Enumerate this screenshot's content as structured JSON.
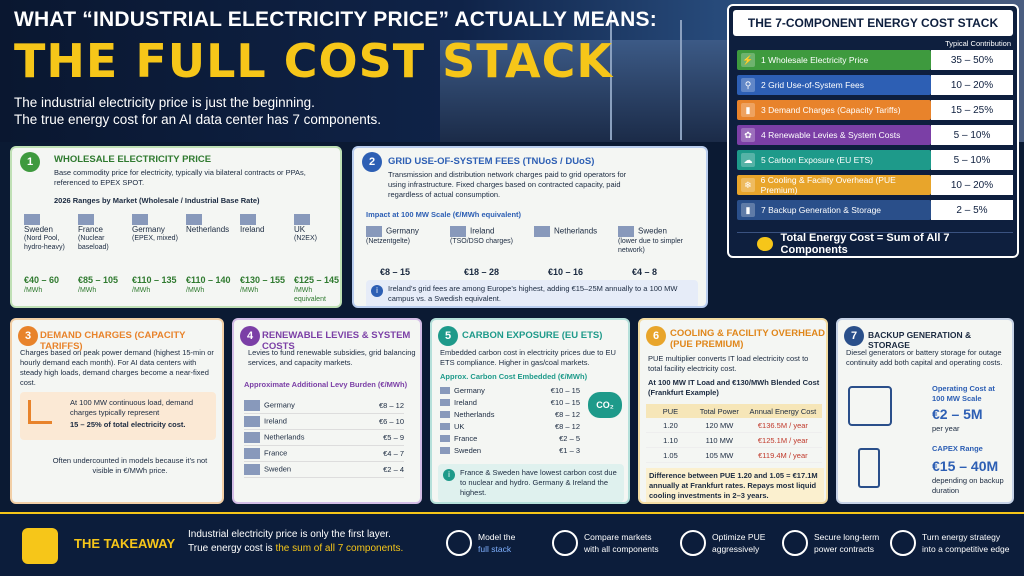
{
  "header": {
    "line1": "WHAT “INDUSTRIAL ELECTRICITY PRICE” ACTUALLY MEANS:",
    "line2": "THE FULL COST STACK",
    "sub1": "The industrial electricity price is just the beginning.",
    "sub2": "The true energy cost for an AI data center has 7 components."
  },
  "stack": {
    "title": "THE 7-COMPONENT ENERGY COST STACK",
    "col": "Typical Contribution",
    "total": "Total Energy Cost = Sum of All 7 Components",
    "rows": [
      {
        "label": "1  Wholesale Electricity Price",
        "value": "35 – 50%",
        "color": "#3e9a3e",
        "icon": "⚡"
      },
      {
        "label": "2  Grid Use-of-System Fees",
        "value": "10 – 20%",
        "color": "#2d5fb4",
        "icon": "⚲"
      },
      {
        "label": "3  Demand Charges (Capacity Tariffs)",
        "value": "15 – 25%",
        "color": "#e8832b",
        "icon": "▮"
      },
      {
        "label": "4  Renewable Levies & System Costs",
        "value": "5 – 10%",
        "color": "#7b3fa6",
        "icon": "✿"
      },
      {
        "label": "5  Carbon Exposure (EU ETS)",
        "value": "5 – 10%",
        "color": "#1e9a8a",
        "icon": "☁"
      },
      {
        "label": "6  Cooling & Facility Overhead (PUE Premium)",
        "value": "10 – 20%",
        "color": "#e8a52b",
        "icon": "❄"
      },
      {
        "label": "7  Backup Generation & Storage",
        "value": "2 – 5%",
        "color": "#2a4f8a",
        "icon": "▮"
      }
    ]
  },
  "c1": {
    "n": "1",
    "title": "WHOLESALE ELECTRICITY PRICE",
    "text": "Base commodity price for electricity, typically via bilateral contracts or PPAs, referenced to EPEX SPOT.",
    "sub": "2026 Ranges by Market (Wholesale / Industrial Base Rate)",
    "markets": [
      {
        "name": "Sweden",
        "note": "(Nord Pool, hydro-heavy)",
        "price": "€40 – 60",
        "unit": "/MWh"
      },
      {
        "name": "France",
        "note": "(Nuclear baseload)",
        "price": "€85 – 105",
        "unit": "/MWh"
      },
      {
        "name": "Germany",
        "note": "(EPEX, mixed)",
        "price": "€110 – 135",
        "unit": "/MWh"
      },
      {
        "name": "Netherlands",
        "note": "",
        "price": "€110 – 140",
        "unit": "/MWh"
      },
      {
        "name": "Ireland",
        "note": "",
        "price": "€130 – 155",
        "unit": "/MWh"
      },
      {
        "name": "UK",
        "note": "(N2EX)",
        "price": "€125 – 145",
        "unit": "/MWh equivalent"
      }
    ]
  },
  "c2": {
    "n": "2",
    "title": "GRID USE-OF-SYSTEM FEES (TNUoS / DUoS)",
    "text": "Transmission and distribution network charges paid to grid operators for using infrastructure. Fixed charges based on contracted capacity, paid regardless of actual consumption.",
    "sub": "Impact at 100 MW Scale (€/MWh equivalent)",
    "markets": [
      {
        "name": "Germany",
        "note": "(Netzentgelte)",
        "price": "€8 – 15"
      },
      {
        "name": "Ireland",
        "note": "(TSO/DSO charges)",
        "price": "€18 – 28"
      },
      {
        "name": "Netherlands",
        "note": "",
        "price": "€10 – 16"
      },
      {
        "name": "Sweden",
        "note": "(lower due to simpler network)",
        "price": "€4 – 8"
      }
    ],
    "note": "Ireland’s grid fees are among Europe’s highest, adding €15–25M annually to a 100 MW campus vs. a Swedish equivalent."
  },
  "c3": {
    "n": "3",
    "title": "DEMAND CHARGES (CAPACITY TARIFFS)",
    "text": "Charges based on peak power demand (highest 15-min or hourly demand each month). For AI data centers with steady high loads, demand charges become a near-fixed cost.",
    "box": "At 100 MW continuous load, demand charges typically represent",
    "pct": "15 – 25% of total electricity cost.",
    "foot": "Often undercounted in models because it’s not visible in €/MWh price."
  },
  "c4": {
    "n": "4",
    "title": "RENEWABLE LEVIES & SYSTEM COSTS",
    "text": "Levies to fund renewable subsidies, grid balancing services, and capacity markets.",
    "sub": "Approximate Additional Levy Burden (€/MWh)",
    "rows": [
      {
        "k": "Germany",
        "v": "€8 – 12"
      },
      {
        "k": "Ireland",
        "v": "€6 – 10"
      },
      {
        "k": "Netherlands",
        "v": "€5 – 9"
      },
      {
        "k": "France",
        "v": "€4 – 7"
      },
      {
        "k": "Sweden",
        "v": "€2 – 4"
      }
    ]
  },
  "c5": {
    "n": "5",
    "title": "CARBON EXPOSURE (EU ETS)",
    "text": "Embedded carbon cost in electricity prices due to EU ETS compliance. Higher in gas/coal markets.",
    "sub": "Approx. Carbon Cost Embedded (€/MWh)",
    "rows": [
      {
        "k": "Germany",
        "v": "€10 – 15"
      },
      {
        "k": "Ireland",
        "v": "€10 – 15"
      },
      {
        "k": "Netherlands",
        "v": "€8 – 12"
      },
      {
        "k": "UK",
        "v": "€8 – 12"
      },
      {
        "k": "France",
        "v": "€2 – 5"
      },
      {
        "k": "Sweden",
        "v": "€1 – 3"
      }
    ],
    "note": "France & Sweden have lowest carbon cost due to nuclear and hydro. Germany & Ireland the highest.",
    "badge": "CO₂"
  },
  "c6": {
    "n": "6",
    "title": "COOLING & FACILITY OVERHEAD (PUE PREMIUM)",
    "text": "PUE multiplier converts IT load electricity cost to total facility electricity cost.",
    "sub": "At 100 MW IT Load and €130/MWh Blended Cost (Frankfurt Example)",
    "head": [
      "PUE",
      "Total Power",
      "Annual Energy Cost"
    ],
    "rows": [
      [
        "1.20",
        "120 MW",
        "€136.5M / year"
      ],
      [
        "1.10",
        "110 MW",
        "€125.1M / year"
      ],
      [
        "1.05",
        "105 MW",
        "€119.4M / year"
      ]
    ],
    "note": "Difference between PUE 1.20 and 1.05 = €17.1M annually at Frankfurt rates. Repays most liquid cooling investments in 2–3 years."
  },
  "c7": {
    "n": "7",
    "title": "BACKUP GENERATION & STORAGE",
    "text": "Diesel generators or battery storage for outage continuity add both capital and operating costs.",
    "op_label": "Operating Cost at 100 MW Scale",
    "op_val": "€2 – 5M",
    "op_unit": "per year",
    "capex_label": "CAPEX Range",
    "capex_val": "€15 – 40M",
    "capex_unit": "depending on backup duration"
  },
  "footer": {
    "title": "THE TAKEAWAY",
    "text1": "Industrial electricity price is only the first layer.",
    "text2a": "True energy cost is ",
    "text2b": "the sum of all 7 components.",
    "items": [
      {
        "l1": "Model the",
        "l2": "full stack"
      },
      {
        "l1": "Compare markets",
        "l2": "with all components"
      },
      {
        "l1": "Optimize PUE",
        "l2": "aggressively"
      },
      {
        "l1": "Secure long-term",
        "l2": "power contracts"
      },
      {
        "l1": "Turn energy strategy",
        "l2": "into a competitive edge"
      }
    ]
  }
}
